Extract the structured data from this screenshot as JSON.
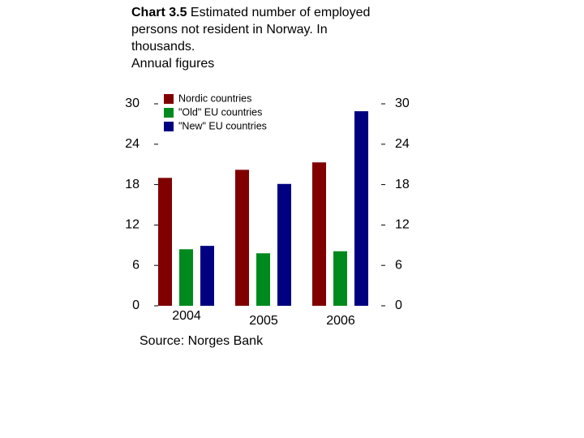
{
  "chart_data": {
    "type": "bar",
    "chart_label": "Chart 3.5",
    "title_lines": [
      "Estimated number of employed",
      "persons not resident in Norway. In",
      "thousands."
    ],
    "subtitle": "Annual figures",
    "source": "Source: Norges Bank",
    "categories": [
      "2004",
      "2005",
      "2006"
    ],
    "series": [
      {
        "name": "Nordic countries",
        "color": "#800000",
        "values": [
          19.0,
          20.2,
          21.3
        ]
      },
      {
        "name": "\"Old\" EU countries",
        "color": "#008a1e",
        "values": [
          8.4,
          7.8,
          8.1
        ]
      },
      {
        "name": "\"New\" EU countries",
        "color": "#000080",
        "values": [
          8.9,
          18.1,
          28.9
        ]
      }
    ],
    "ylim": [
      0,
      30
    ],
    "yticks": [
      0,
      6,
      12,
      18,
      24,
      30
    ],
    "y2lim": [
      0,
      30
    ],
    "y2ticks": [
      0,
      6,
      12,
      18,
      24,
      30
    ],
    "grid": false,
    "legend": "top-left"
  }
}
